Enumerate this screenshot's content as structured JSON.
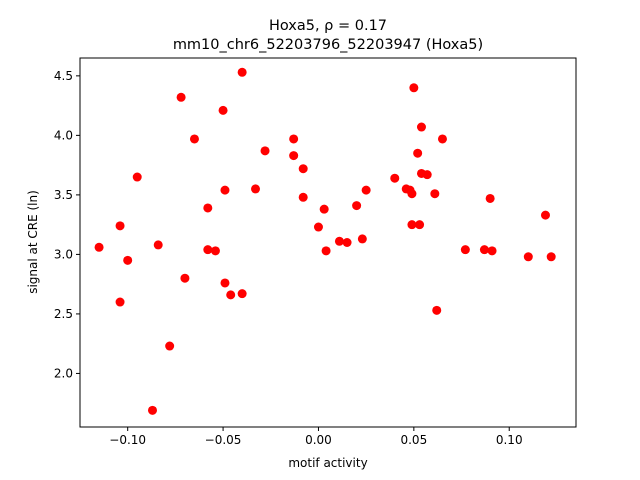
{
  "chart_data": {
    "type": "scatter",
    "title_line1": "Hoxa5, ρ = 0.17",
    "title_line2": "mm10_chr6_52203796_52203947 (Hoxa5)",
    "xlabel": "motif activity",
    "ylabel": "signal at CRE (ln)",
    "xlim": [
      -0.125,
      0.135
    ],
    "ylim": [
      1.55,
      4.65
    ],
    "xticks": [
      -0.1,
      -0.05,
      0.0,
      0.05,
      0.1
    ],
    "xtick_labels": [
      "−0.10",
      "−0.05",
      "0.00",
      "0.05",
      "0.10"
    ],
    "yticks": [
      2.0,
      2.5,
      3.0,
      3.5,
      4.0,
      4.5
    ],
    "ytick_labels": [
      "2.0",
      "2.5",
      "3.0",
      "3.5",
      "4.0",
      "4.5"
    ],
    "marker_color": "#ff0000",
    "grid": false,
    "points": [
      {
        "x": -0.115,
        "y": 3.06
      },
      {
        "x": -0.104,
        "y": 3.24
      },
      {
        "x": -0.104,
        "y": 2.6
      },
      {
        "x": -0.1,
        "y": 2.95
      },
      {
        "x": -0.095,
        "y": 3.65
      },
      {
        "x": -0.087,
        "y": 1.69
      },
      {
        "x": -0.084,
        "y": 3.08
      },
      {
        "x": -0.078,
        "y": 2.23
      },
      {
        "x": -0.072,
        "y": 4.32
      },
      {
        "x": -0.07,
        "y": 2.8
      },
      {
        "x": -0.065,
        "y": 3.97
      },
      {
        "x": -0.058,
        "y": 3.39
      },
      {
        "x": -0.058,
        "y": 3.04
      },
      {
        "x": -0.054,
        "y": 3.03
      },
      {
        "x": -0.05,
        "y": 4.21
      },
      {
        "x": -0.049,
        "y": 3.54
      },
      {
        "x": -0.049,
        "y": 2.76
      },
      {
        "x": -0.046,
        "y": 2.66
      },
      {
        "x": -0.04,
        "y": 4.53
      },
      {
        "x": -0.04,
        "y": 2.67
      },
      {
        "x": -0.033,
        "y": 3.55
      },
      {
        "x": -0.028,
        "y": 3.87
      },
      {
        "x": -0.013,
        "y": 3.97
      },
      {
        "x": -0.013,
        "y": 3.83
      },
      {
        "x": -0.008,
        "y": 3.72
      },
      {
        "x": -0.008,
        "y": 3.48
      },
      {
        "x": 0.0,
        "y": 3.23
      },
      {
        "x": 0.003,
        "y": 3.38
      },
      {
        "x": 0.004,
        "y": 3.03
      },
      {
        "x": 0.011,
        "y": 3.11
      },
      {
        "x": 0.015,
        "y": 3.1
      },
      {
        "x": 0.02,
        "y": 3.41
      },
      {
        "x": 0.023,
        "y": 3.13
      },
      {
        "x": 0.025,
        "y": 3.54
      },
      {
        "x": 0.04,
        "y": 3.64
      },
      {
        "x": 0.046,
        "y": 3.55
      },
      {
        "x": 0.048,
        "y": 3.54
      },
      {
        "x": 0.049,
        "y": 3.51
      },
      {
        "x": 0.049,
        "y": 3.25
      },
      {
        "x": 0.05,
        "y": 4.4
      },
      {
        "x": 0.052,
        "y": 3.85
      },
      {
        "x": 0.053,
        "y": 3.25
      },
      {
        "x": 0.054,
        "y": 4.07
      },
      {
        "x": 0.054,
        "y": 3.68
      },
      {
        "x": 0.057,
        "y": 3.67
      },
      {
        "x": 0.061,
        "y": 3.51
      },
      {
        "x": 0.062,
        "y": 2.53
      },
      {
        "x": 0.065,
        "y": 3.97
      },
      {
        "x": 0.077,
        "y": 3.04
      },
      {
        "x": 0.087,
        "y": 3.04
      },
      {
        "x": 0.09,
        "y": 3.47
      },
      {
        "x": 0.091,
        "y": 3.03
      },
      {
        "x": 0.11,
        "y": 2.98
      },
      {
        "x": 0.119,
        "y": 3.33
      },
      {
        "x": 0.122,
        "y": 2.98
      }
    ]
  }
}
